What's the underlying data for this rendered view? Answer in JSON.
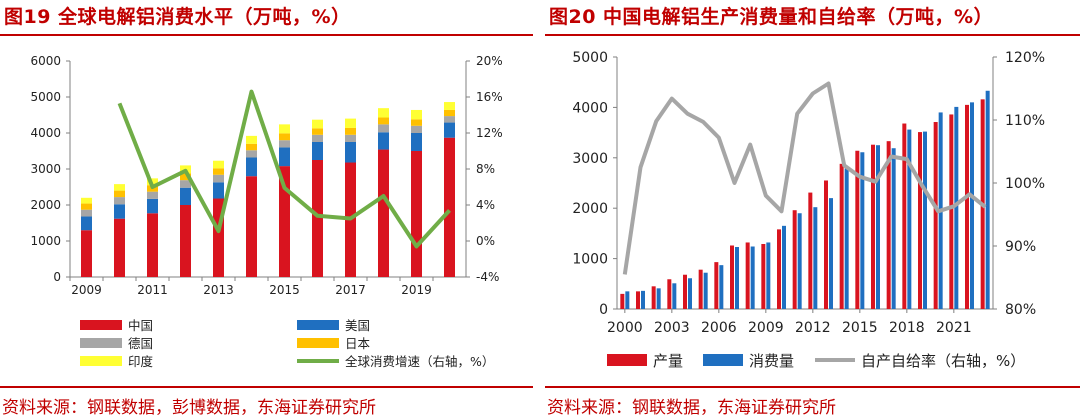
{
  "colors": {
    "china": "#d9141f",
    "us": "#1f6fc0",
    "germany": "#a6a6a6",
    "japan": "#ffc000",
    "india": "#ffff33",
    "growth": "#70ad47",
    "production": "#d9141f",
    "consumption": "#1f6fc0",
    "self_sufficiency": "#a6a6a6",
    "accent": "#c00000"
  },
  "left": {
    "title": "图19  全球电解铝消费水平（万吨，%）",
    "source": "资料来源：钢联数据，彭博数据，东海证券研究所"
  },
  "right": {
    "title": "图20  中国电解铝生产消费量和自给率（万吨，%）",
    "source": "资料来源：钢联数据，东海证券研究所"
  },
  "chart_data": [
    {
      "type": "bar",
      "stacked": true,
      "title": "图19  全球电解铝消费水平（万吨，%）",
      "categories": [
        "2009",
        "2010",
        "2011",
        "2012",
        "2013",
        "2014",
        "2015",
        "2016",
        "2017",
        "2018",
        "2019",
        "2020"
      ],
      "x_tick_labels": [
        "2009",
        "2011",
        "2013",
        "2015",
        "2017",
        "2019"
      ],
      "y_left": {
        "range": [
          0,
          6000
        ],
        "ticks": [
          "0",
          "1000",
          "2000",
          "3000",
          "4000",
          "5000",
          "6000"
        ]
      },
      "y_right": {
        "range": [
          -4,
          20
        ],
        "ticks": [
          "-4%",
          "0%",
          "4%",
          "8%",
          "12%",
          "16%",
          "20%"
        ]
      },
      "series": [
        {
          "name": "中国",
          "key": "china",
          "axis": "left",
          "values": [
            1300,
            1620,
            1770,
            2000,
            2180,
            2800,
            3080,
            3250,
            3180,
            3540,
            3500,
            3870
          ]
        },
        {
          "name": "美国",
          "key": "us",
          "axis": "left",
          "values": [
            380,
            400,
            400,
            480,
            450,
            520,
            520,
            500,
            570,
            480,
            500,
            420
          ]
        },
        {
          "name": "德国",
          "key": "germany",
          "axis": "left",
          "values": [
            190,
            200,
            200,
            210,
            210,
            200,
            200,
            200,
            200,
            220,
            200,
            180
          ]
        },
        {
          "name": "日本",
          "key": "japan",
          "axis": "left",
          "values": [
            170,
            180,
            180,
            190,
            180,
            180,
            190,
            180,
            190,
            190,
            180,
            170
          ]
        },
        {
          "name": "印度",
          "key": "india",
          "axis": "left",
          "values": [
            160,
            180,
            190,
            220,
            210,
            220,
            250,
            240,
            260,
            260,
            260,
            220
          ]
        },
        {
          "name": "全球消费增速（右轴，%）",
          "key": "growth",
          "axis": "right",
          "type": "line",
          "values": [
            null,
            15.3,
            6.0,
            7.8,
            1.1,
            16.6,
            5.9,
            2.8,
            2.5,
            5.0,
            -0.6,
            3.4
          ]
        }
      ],
      "legend": [
        "中国",
        "美国",
        "德国",
        "日本",
        "印度",
        "全球消费增速（右轴，%）"
      ],
      "legend_position": "bottom"
    },
    {
      "type": "bar",
      "title": "图20  中国电解铝生产消费量和自给率（万吨，%）",
      "categories": [
        "2000",
        "2001",
        "2002",
        "2003",
        "2004",
        "2005",
        "2006",
        "2007",
        "2008",
        "2009",
        "2010",
        "2011",
        "2012",
        "2013",
        "2014",
        "2015",
        "2016",
        "2017",
        "2018",
        "2019",
        "2020",
        "2021",
        "2022",
        "2023"
      ],
      "x_tick_labels": [
        "2000",
        "2003",
        "2006",
        "2009",
        "2012",
        "2015",
        "2018",
        "2021"
      ],
      "y_left": {
        "range": [
          0,
          5000
        ],
        "ticks": [
          "0",
          "1000",
          "2000",
          "3000",
          "4000",
          "5000"
        ]
      },
      "y_right": {
        "range": [
          80,
          120
        ],
        "ticks": [
          "80%",
          "90%",
          "100%",
          "110%",
          "120%"
        ]
      },
      "series": [
        {
          "name": "产量",
          "key": "production",
          "axis": "left",
          "values": [
            300,
            350,
            450,
            590,
            680,
            780,
            930,
            1260,
            1320,
            1290,
            1580,
            1960,
            2310,
            2550,
            2880,
            3140,
            3260,
            3330,
            3680,
            3510,
            3710,
            3860,
            4050,
            4160
          ]
        },
        {
          "name": "消费量",
          "key": "consumption",
          "axis": "left",
          "values": [
            350,
            360,
            410,
            510,
            610,
            720,
            870,
            1230,
            1240,
            1320,
            1650,
            1900,
            2020,
            2200,
            2790,
            3110,
            3250,
            3190,
            3560,
            3520,
            3900,
            4010,
            4100,
            4330
          ]
        },
        {
          "name": "自产自给率（右轴，%）",
          "key": "self_sufficiency",
          "axis": "right",
          "type": "line",
          "values": [
            85.5,
            102.5,
            109.8,
            113.4,
            111.0,
            109.7,
            107.2,
            100.0,
            106.1,
            98.0,
            95.5,
            111.0,
            114.2,
            115.8,
            102.8,
            101.0,
            100.2,
            104.2,
            103.8,
            99.5,
            95.5,
            96.3,
            98.2,
            96.2
          ]
        }
      ],
      "legend": [
        "产量",
        "消费量",
        "自产自给率（右轴，%）"
      ],
      "legend_position": "bottom"
    }
  ]
}
